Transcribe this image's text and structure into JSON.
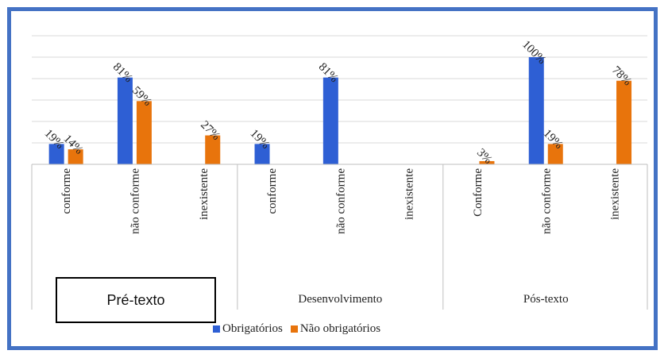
{
  "chart_data": {
    "type": "bar",
    "groups": [
      {
        "name": "Pré-texto",
        "categories": [
          "conforme",
          "não conforme",
          "inexistente"
        ]
      },
      {
        "name": "Desenvolvimento",
        "categories": [
          "conforme",
          "não conforme",
          "inexistente"
        ]
      },
      {
        "name": "Pós-texto",
        "categories": [
          "Conforme",
          "não conforme",
          "inexistente"
        ]
      }
    ],
    "series": [
      {
        "name": "Obrigatórios",
        "color": "#2E5FD4",
        "values": [
          19,
          81,
          null,
          19,
          81,
          null,
          null,
          100,
          null
        ]
      },
      {
        "name": "Não obrigatórios",
        "color": "#E8740C",
        "values": [
          14,
          59,
          27,
          null,
          null,
          null,
          3,
          19,
          78
        ]
      }
    ],
    "data_labels": {
      "Obrigatórios": [
        "19%",
        "81%",
        "",
        "19%",
        "81%",
        "",
        "",
        "100%",
        ""
      ],
      "Não obrigatórios": [
        "14%",
        "59%",
        "27%",
        "",
        "",
        "",
        "3%",
        "19%",
        "78%"
      ]
    },
    "ylim": [
      0,
      120
    ],
    "grid": true,
    "legend_position": "bottom"
  }
}
